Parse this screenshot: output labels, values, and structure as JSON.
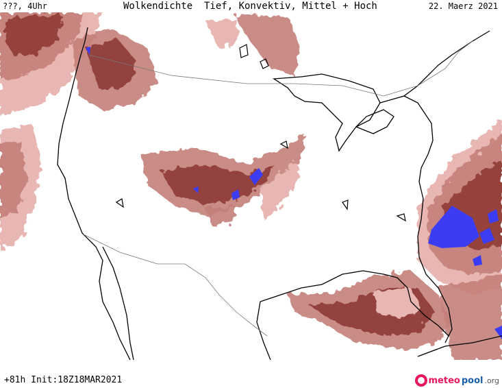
{
  "header": {
    "left": "???, 4Uhr",
    "title": "Wolkendichte  Tief, Konvektiv, Mittel + Hoch",
    "date": "22. Maerz 2021"
  },
  "footer": {
    "run": "+81h Init:18Z18MAR2021",
    "logo_a": "meteo",
    "logo_b": "pool",
    "logo_c": ".org"
  },
  "colors": {
    "cloud_light": "#e8b7b3",
    "cloud_mid": "#c47f79",
    "cloud_dark": "#8f3b36",
    "convective": "#3c3cf5",
    "coast": "#000000",
    "border": "#777777"
  }
}
